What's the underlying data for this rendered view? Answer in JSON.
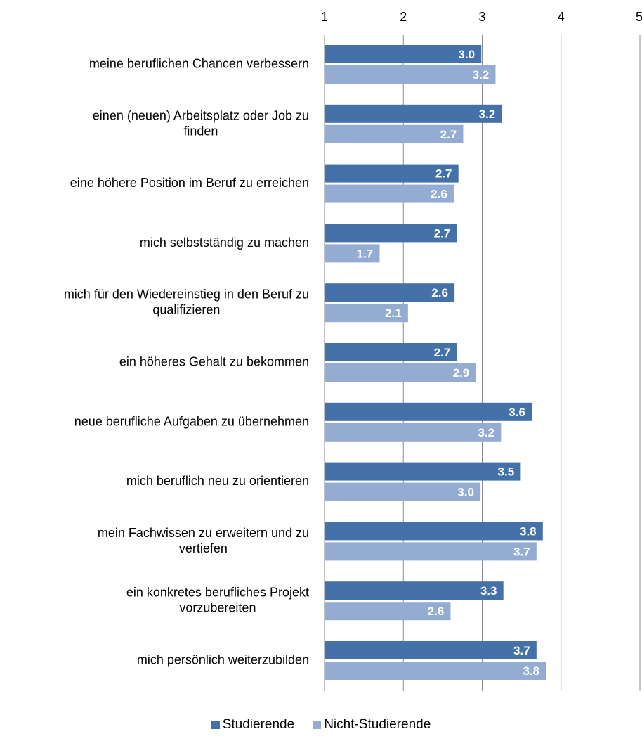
{
  "chart_data": {
    "type": "bar",
    "orientation": "horizontal",
    "categories": [
      [
        "meine beruflichen Chancen verbessern"
      ],
      [
        "einen (neuen) Arbeitsplatz oder Job zu",
        "finden"
      ],
      [
        "eine höhere Position im Beruf zu erreichen"
      ],
      [
        "mich selbstständig zu machen"
      ],
      [
        "mich für den Wiedereinstieg in den Beruf zu",
        "qualifizieren"
      ],
      [
        "ein höheres Gehalt zu bekommen"
      ],
      [
        "neue berufliche Aufgaben zu übernehmen"
      ],
      [
        "mich beruflich neu zu orientieren"
      ],
      [
        "mein Fachwissen zu erweitern und zu",
        "vertiefen"
      ],
      [
        "ein konkretes berufliches Projekt",
        "vorzubereiten"
      ],
      [
        "mich persönlich weiterzubilden"
      ]
    ],
    "series": [
      {
        "name": "Studierende",
        "color": "#4472A8",
        "values": [
          2.98,
          3.24,
          2.69,
          2.67,
          2.64,
          2.67,
          3.62,
          3.48,
          3.76,
          3.26,
          3.68
        ],
        "labels": [
          "3.0",
          "3.2",
          "2.7",
          "2.7",
          "2.6",
          "2.7",
          "3.6",
          "3.5",
          "3.8",
          "3.3",
          "3.7"
        ]
      },
      {
        "name": "Nicht-Studierende",
        "color": "#95ACD2",
        "values": [
          3.16,
          2.75,
          2.63,
          1.69,
          2.05,
          2.91,
          3.23,
          2.97,
          3.68,
          2.59,
          3.8
        ],
        "labels": [
          "3.2",
          "2.7",
          "2.6",
          "1.7",
          "2.1",
          "2.9",
          "3.2",
          "3.0",
          "3.7",
          "2.6",
          "3.8"
        ]
      }
    ],
    "xaxis": {
      "position": "top",
      "min": 1,
      "max": 5,
      "ticks": [
        "1",
        "2",
        "3",
        "4",
        "5"
      ]
    },
    "grid": true,
    "legend_position": "bottom"
  }
}
